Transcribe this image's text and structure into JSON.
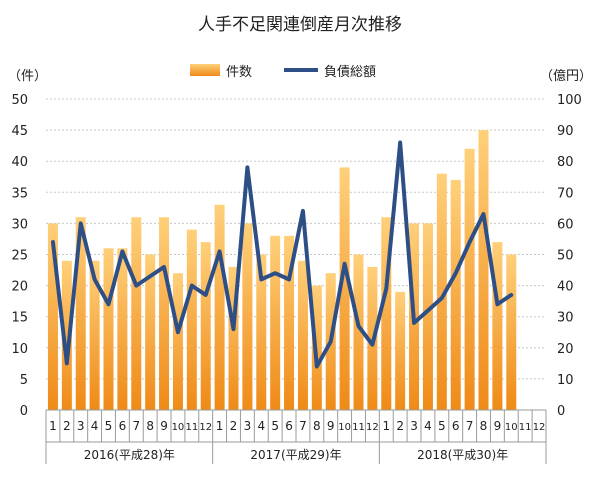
{
  "chart_data": {
    "type": "bar",
    "title": "人手不足関連倒産月次推移",
    "left_unit": "（件）",
    "right_unit": "（億円）",
    "legend": {
      "bar_label": "件数",
      "line_label": "負債総額",
      "position": "top-center"
    },
    "colors": {
      "bar_top": "#ffd07a",
      "bar_bottom": "#ef8a17",
      "line": "#2e4f86",
      "grid": "#c8c8c8",
      "axis": "#9a9a9a"
    },
    "y_left": {
      "min": 0,
      "max": 50,
      "step": 5,
      "ticks": [
        "0",
        "5",
        "10",
        "15",
        "20",
        "25",
        "30",
        "35",
        "40",
        "45",
        "50"
      ]
    },
    "y_right": {
      "min": 0,
      "max": 100,
      "step": 10,
      "ticks": [
        "0",
        "10",
        "20",
        "30",
        "40",
        "50",
        "60",
        "70",
        "80",
        "90",
        "100"
      ]
    },
    "grid": true,
    "years": [
      {
        "label": "2016(平成28)年",
        "months": [
          "1",
          "2",
          "3",
          "4",
          "5",
          "6",
          "7",
          "8",
          "9",
          "10",
          "11",
          "12"
        ]
      },
      {
        "label": "2017(平成29)年",
        "months": [
          "1",
          "2",
          "3",
          "4",
          "5",
          "6",
          "7",
          "8",
          "9",
          "10",
          "11",
          "12"
        ]
      },
      {
        "label": "2018(平成30)年",
        "months": [
          "1",
          "2",
          "3",
          "4",
          "5",
          "6",
          "7",
          "8",
          "9",
          "10",
          "11",
          "12"
        ]
      }
    ],
    "series": [
      {
        "name": "件数",
        "kind": "bar",
        "axis": "left",
        "values": [
          30,
          24,
          31,
          24,
          26,
          26,
          31,
          25,
          31,
          22,
          29,
          27,
          33,
          23,
          30,
          25,
          28,
          28,
          24,
          20,
          22,
          39,
          25,
          23,
          31,
          19,
          30,
          30,
          38,
          37,
          42,
          45,
          27,
          25,
          null,
          null
        ]
      },
      {
        "name": "負債総額",
        "kind": "line",
        "axis": "right",
        "values": [
          54,
          15,
          60,
          42,
          34,
          51,
          40,
          43,
          46,
          25,
          40,
          37,
          51,
          26,
          78,
          42,
          44,
          42,
          64,
          14,
          22,
          47,
          27,
          21,
          39,
          86,
          28,
          32,
          36,
          44,
          54,
          63,
          34,
          37,
          null,
          null
        ]
      }
    ]
  }
}
